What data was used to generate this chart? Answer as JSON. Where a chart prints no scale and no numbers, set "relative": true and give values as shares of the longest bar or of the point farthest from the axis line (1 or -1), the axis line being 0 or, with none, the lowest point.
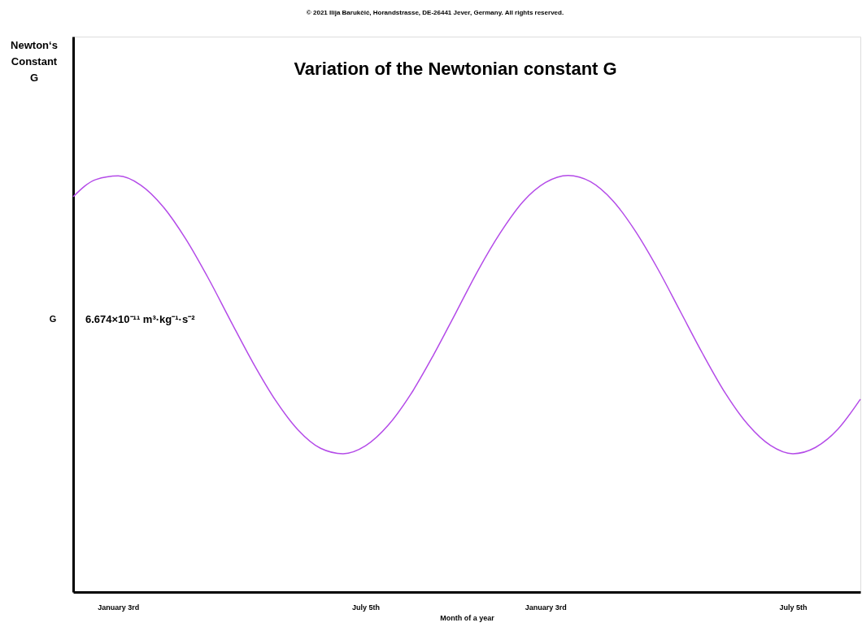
{
  "chart_data": {
    "type": "line",
    "title": "Variation of the Newtonian constant G",
    "xlabel": "Month of a year",
    "relative": true,
    "grid": false,
    "marker": "none",
    "line_style": "solid",
    "categories": [
      null,
      null,
      "January 3rd",
      null,
      null,
      null,
      null,
      null,
      null,
      null,
      null,
      null,
      null,
      "July 5th",
      null,
      null,
      null,
      null,
      null,
      null,
      null,
      "January 3rd",
      null,
      null,
      null,
      null,
      null,
      null,
      null,
      null,
      null,
      null,
      "July 5th",
      null,
      null,
      null
    ],
    "series": [
      {
        "color": "#b44be8",
        "values": [
          0.949,
          0.99,
          0.999,
          0.977,
          0.925,
          0.848,
          0.754,
          0.651,
          0.55,
          0.46,
          0.389,
          0.345,
          0.332,
          0.351,
          0.4,
          0.474,
          0.567,
          0.669,
          0.772,
          0.863,
          0.937,
          0.983,
          1.0,
          0.985,
          0.939,
          0.866,
          0.775,
          0.673,
          0.571,
          0.477,
          0.402,
          0.352,
          0.332,
          0.347,
          0.391,
          0.463
        ]
      }
    ],
    "annotations": [
      "Newton‘s\nConstant\nG",
      "G",
      "6.674×10⁻¹¹ m³·kg⁻¹·s⁻²",
      "© 2021 Ilija Barukčić, Horandstrasse, DE-26441 Jever, Germany. All rights reserved."
    ]
  }
}
